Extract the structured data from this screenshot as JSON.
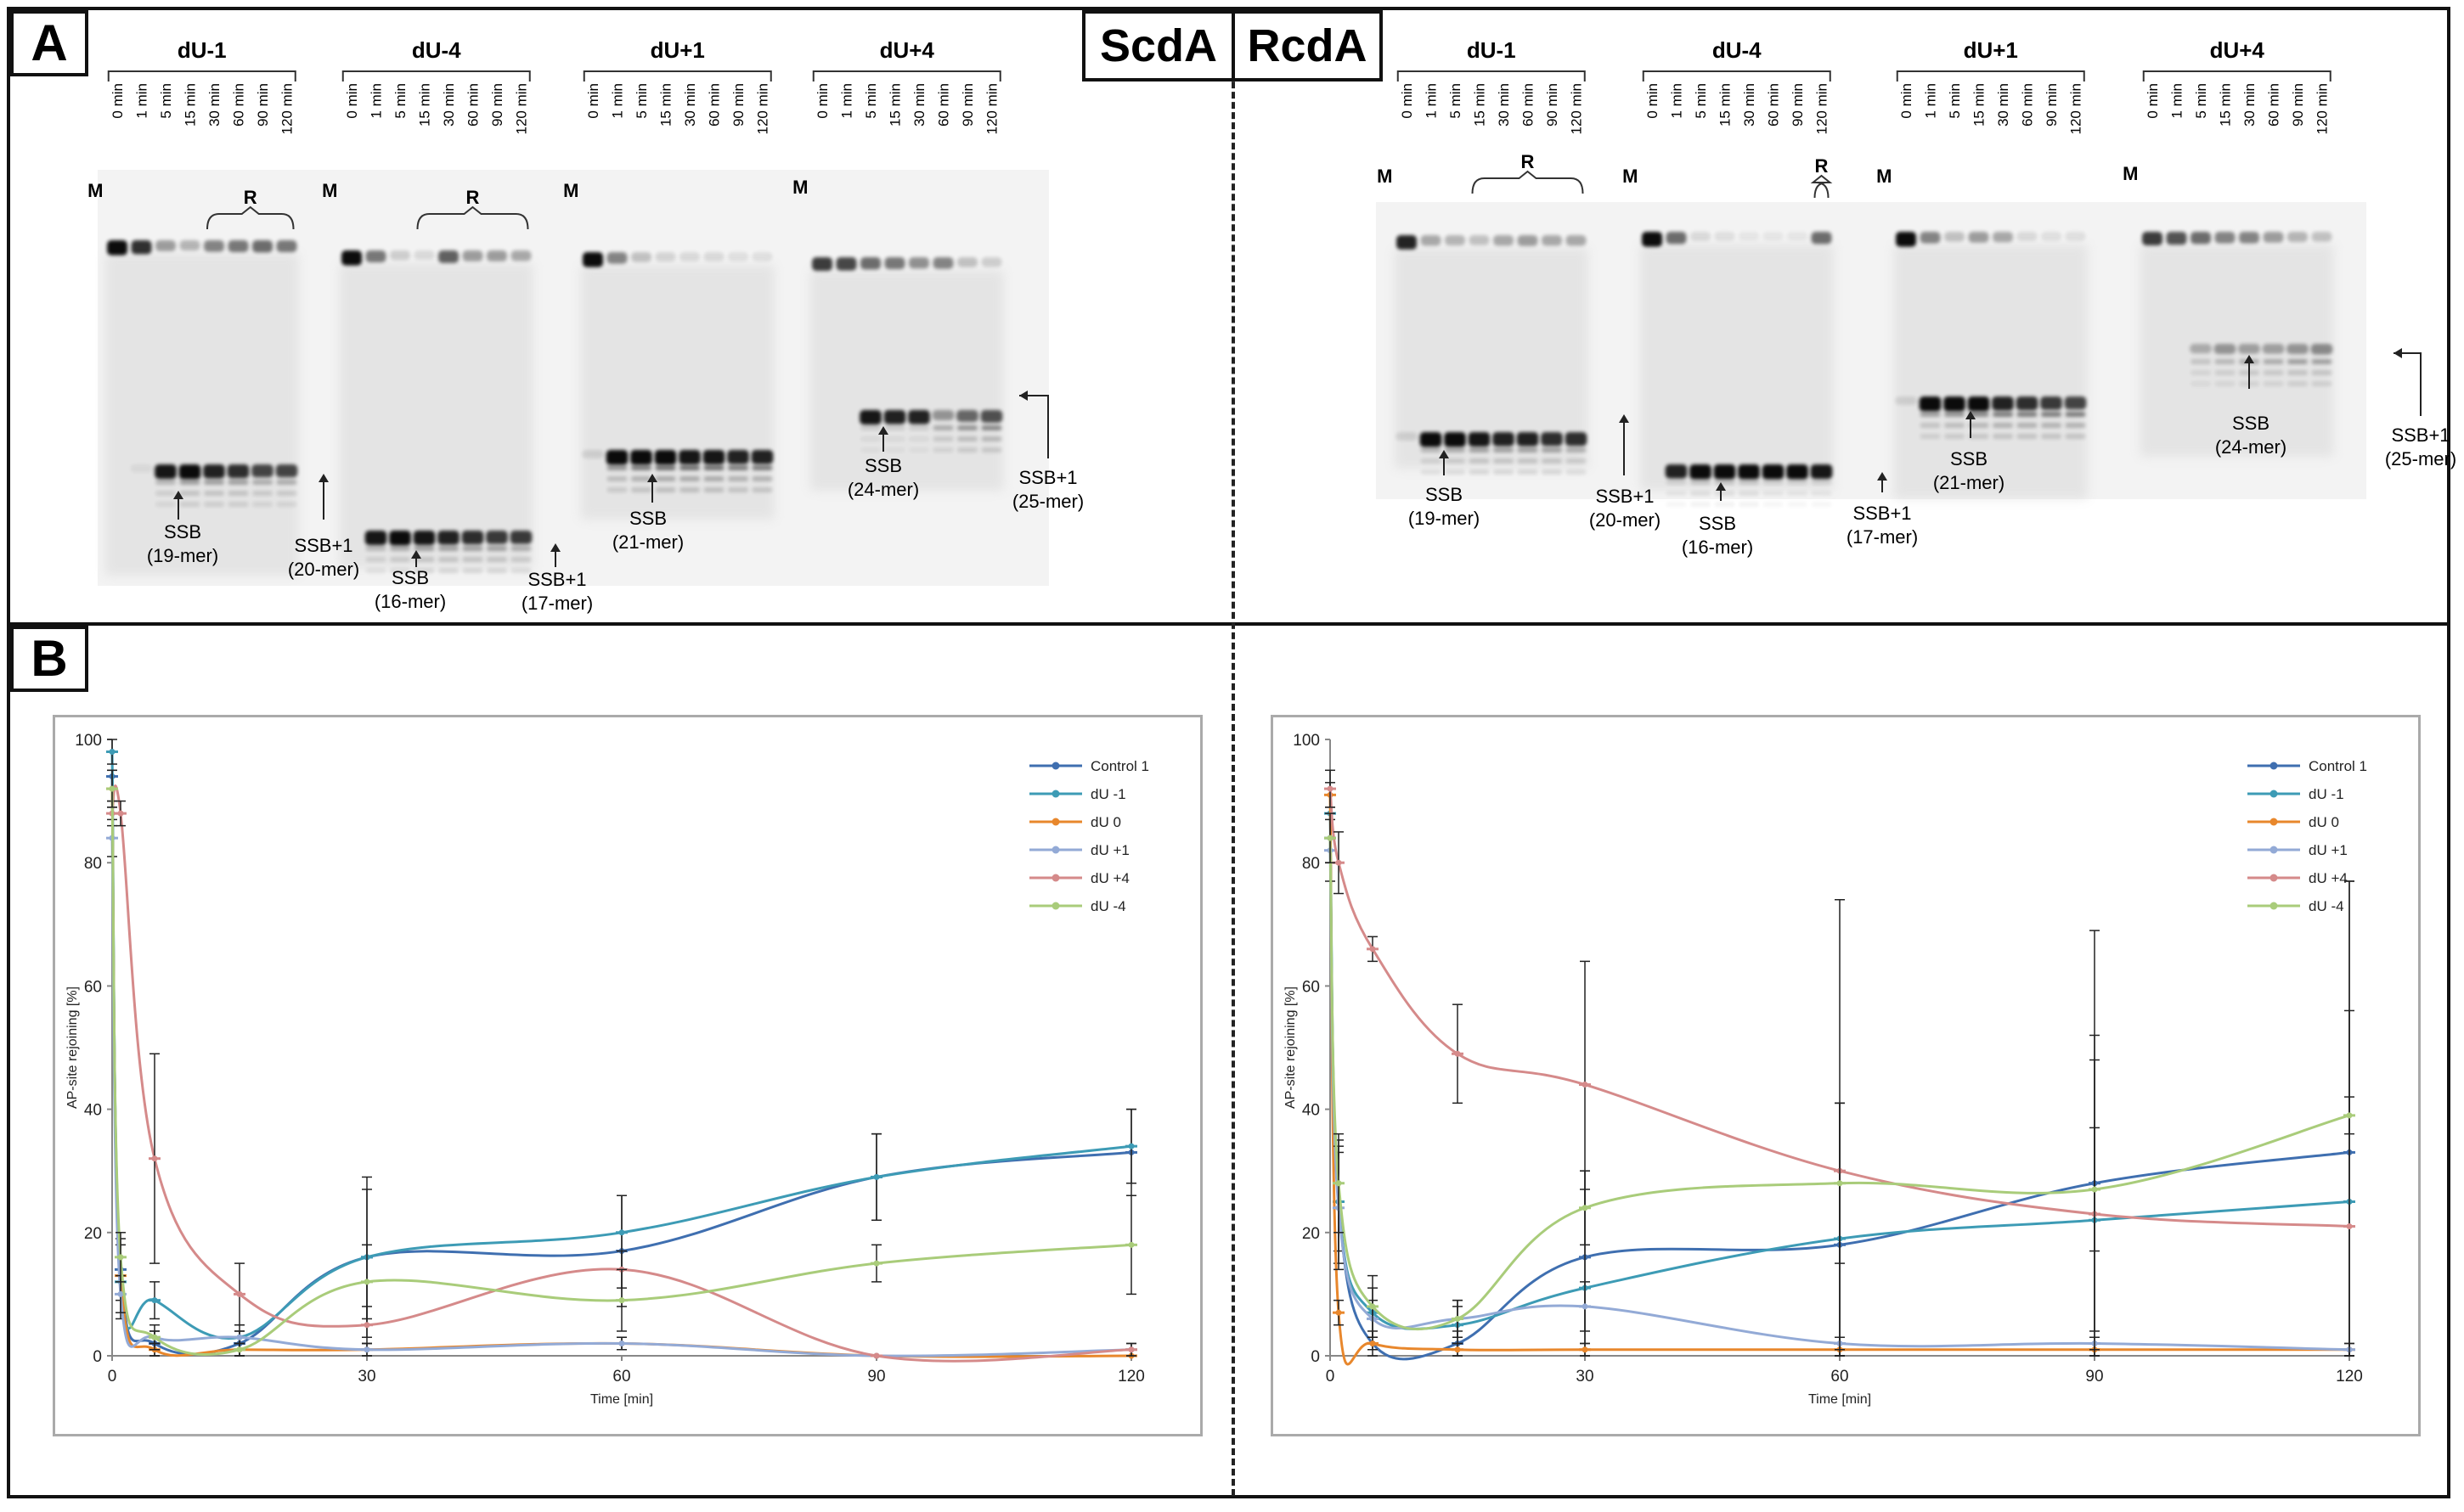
{
  "figure": {
    "panel_a_letter": "A",
    "panel_b_letter": "B",
    "scda_title": "ScdA",
    "rcda_title": "RcdA"
  },
  "gels": {
    "time_labels": [
      "0 min",
      "1 min",
      "5 min",
      "15 min",
      "30 min",
      "60 min",
      "90 min",
      "120 min"
    ],
    "marker_label": "M",
    "repair_label": "R",
    "scda": {
      "groups": [
        "dU-1",
        "dU-4",
        "dU+1",
        "dU+4"
      ],
      "annotations": [
        {
          "line1": "SSB",
          "line2": "(19-mer)"
        },
        {
          "line1": "SSB+1",
          "line2": "(20-mer)"
        },
        {
          "line1": "SSB",
          "line2": "(16-mer)"
        },
        {
          "line1": "SSB+1",
          "line2": "(17-mer)"
        },
        {
          "line1": "SSB",
          "line2": "(21-mer)"
        },
        {
          "line1": "SSB",
          "line2": "(24-mer)"
        },
        {
          "line1": "SSB+1",
          "line2": "(25-mer)"
        }
      ]
    },
    "rcda": {
      "groups": [
        "dU-1",
        "dU-4",
        "dU+1",
        "dU+4"
      ],
      "annotations": [
        {
          "line1": "SSB",
          "line2": "(19-mer)"
        },
        {
          "line1": "SSB+1",
          "line2": "(20-mer)"
        },
        {
          "line1": "SSB",
          "line2": "(16-mer)"
        },
        {
          "line1": "SSB+1",
          "line2": "(17-mer)"
        },
        {
          "line1": "SSB",
          "line2": "(21-mer)"
        },
        {
          "line1": "SSB",
          "line2": "(24-mer)"
        },
        {
          "line1": "SSB+1",
          "line2": "(25-mer)"
        }
      ]
    }
  },
  "colors": {
    "Control 1": "#3f6fb0",
    "dU -1": "#3d9bb5",
    "dU 0": "#e8872c",
    "dU +1": "#93aad6",
    "dU +4": "#d58a8a",
    "dU -4": "#a9cc7a"
  },
  "chart_data": [
    {
      "type": "line",
      "panel": "ScdA",
      "xlabel": "Time [min]",
      "ylabel": "AP-site rejoining [%]",
      "xlim": [
        0,
        120
      ],
      "ylim": [
        0,
        100
      ],
      "xticks": [
        0,
        30,
        60,
        90,
        120
      ],
      "yticks": [
        0,
        20,
        40,
        60,
        80,
        100
      ],
      "legend_position": "top-right",
      "x": [
        0,
        1,
        5,
        15,
        30,
        60,
        90,
        120
      ],
      "series": [
        {
          "name": "Control 1",
          "values": [
            94,
            14,
            2,
            2,
            16,
            17,
            29,
            33
          ],
          "errors": [
            4,
            5,
            2,
            2,
            13,
            9,
            7,
            7
          ]
        },
        {
          "name": "dU -1",
          "values": [
            98,
            12,
            9,
            3,
            16,
            20,
            29,
            34
          ],
          "errors": [
            2,
            6,
            3,
            2,
            11,
            6,
            7,
            6
          ]
        },
        {
          "name": "dU 0",
          "values": [
            92,
            13,
            1,
            1,
            1,
            2,
            0,
            0
          ],
          "errors": [
            3,
            3,
            1,
            1,
            1,
            1,
            0,
            0
          ]
        },
        {
          "name": "dU +1",
          "values": [
            84,
            10,
            3,
            3,
            1,
            2,
            0,
            1
          ],
          "errors": [
            3,
            3,
            1,
            1,
            1,
            1,
            0,
            1
          ]
        },
        {
          "name": "dU +4",
          "values": [
            88,
            88,
            32,
            10,
            5,
            14,
            0,
            1
          ],
          "errors": [
            2,
            2,
            17,
            5,
            3,
            3,
            0,
            1
          ]
        },
        {
          "name": "dU -4",
          "values": [
            92,
            16,
            3,
            1,
            12,
            9,
            15,
            18
          ],
          "errors": [
            3,
            4,
            2,
            1,
            6,
            5,
            3,
            8
          ]
        }
      ]
    },
    {
      "type": "line",
      "panel": "RcdA",
      "xlabel": "Time [min]",
      "ylabel": "AP-site rejoining [%]",
      "xlim": [
        0,
        120
      ],
      "ylim": [
        0,
        100
      ],
      "xticks": [
        0,
        30,
        60,
        90,
        120
      ],
      "yticks": [
        0,
        20,
        40,
        60,
        80,
        100
      ],
      "legend_position": "top-right",
      "x": [
        0,
        1,
        5,
        15,
        30,
        60,
        90,
        120
      ],
      "series": [
        {
          "name": "Control 1",
          "values": [
            84,
            25,
            2,
            2,
            16,
            18,
            28,
            33
          ],
          "errors": [
            4,
            8,
            2,
            2,
            14,
            23,
            24,
            44
          ]
        },
        {
          "name": "dU -1",
          "values": [
            88,
            25,
            7,
            5,
            11,
            19,
            22,
            25
          ],
          "errors": [
            4,
            10,
            4,
            3,
            16,
            22,
            26,
            31
          ]
        },
        {
          "name": "dU 0",
          "values": [
            91,
            7,
            2,
            1,
            1,
            1,
            1,
            1
          ],
          "errors": [
            2,
            2,
            1,
            1,
            1,
            1,
            1,
            1
          ]
        },
        {
          "name": "dU +1",
          "values": [
            82,
            24,
            6,
            6,
            8,
            2,
            2,
            1
          ],
          "errors": [
            5,
            10,
            3,
            3,
            4,
            1,
            1,
            1
          ]
        },
        {
          "name": "dU +4",
          "values": [
            92,
            80,
            66,
            49,
            44,
            30,
            23,
            21
          ],
          "errors": [
            3,
            5,
            2,
            8,
            20,
            44,
            46,
            56
          ]
        },
        {
          "name": "dU -4",
          "values": [
            84,
            28,
            8,
            6,
            24,
            28,
            27,
            39
          ],
          "errors": [
            4,
            8,
            5,
            3,
            6,
            13,
            10,
            3
          ]
        }
      ]
    }
  ]
}
